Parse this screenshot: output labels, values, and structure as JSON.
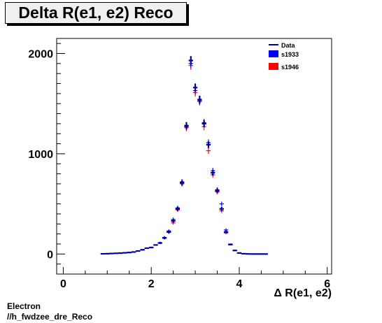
{
  "title": "Delta R(e1, e2) Reco",
  "footer": {
    "line1": "Electron",
    "line2": "//h_fwdzee_dre_Reco"
  },
  "colors": {
    "Data": "#000099",
    "s1933": "#0000ff",
    "s1946": "#ff0000"
  },
  "chart_data": {
    "type": "scatter",
    "title": "Delta R(e1, e2) Reco",
    "xlabel": "Δ R(e1, e2)",
    "ylabel": "",
    "xlim": [
      -0.15,
      6.1
    ],
    "ylim": [
      -200,
      2150
    ],
    "xticks": [
      "0",
      "2",
      "4",
      "6"
    ],
    "yticks": [
      "0",
      "1000",
      "2000"
    ],
    "legend_position": "top-right",
    "legend": [
      "Data",
      "s1933",
      "s1946"
    ],
    "bin_width": 0.1,
    "x": [
      0.9,
      1.0,
      1.1,
      1.2,
      1.3,
      1.4,
      1.5,
      1.6,
      1.7,
      1.8,
      1.9,
      2.0,
      2.1,
      2.2,
      2.3,
      2.4,
      2.5,
      2.6,
      2.7,
      2.8,
      2.9,
      3.0,
      3.1,
      3.2,
      3.3,
      3.4,
      3.5,
      3.6,
      3.7,
      3.8,
      3.9,
      4.0,
      4.1,
      4.2,
      4.3,
      4.4,
      4.5,
      4.6
    ],
    "series": [
      {
        "name": "Data",
        "values": [
          2,
          3,
          5,
          7,
          9,
          12,
          15,
          20,
          30,
          42,
          58,
          65,
          90,
          110,
          160,
          220,
          330,
          450,
          710,
          1280,
          1930,
          1660,
          1540,
          1300,
          1090,
          810,
          630,
          450,
          220,
          95,
          35,
          10,
          3,
          1,
          0,
          0,
          0,
          0
        ]
      },
      {
        "name": "s1933",
        "values": [
          2,
          3,
          5,
          7,
          9,
          12,
          16,
          21,
          32,
          45,
          60,
          68,
          92,
          112,
          165,
          230,
          345,
          460,
          720,
          1270,
          1900,
          1630,
          1530,
          1310,
          1110,
          830,
          640,
          500,
          240,
          100,
          38,
          11,
          3,
          1,
          0,
          0,
          0,
          0
        ]
      },
      {
        "name": "s1946",
        "values": [
          2,
          3,
          5,
          7,
          9,
          12,
          15,
          19,
          29,
          40,
          56,
          63,
          88,
          108,
          158,
          216,
          310,
          440,
          700,
          1260,
          1880,
          1610,
          1520,
          1270,
          1030,
          790,
          620,
          430,
          210,
          90,
          33,
          9,
          3,
          1,
          0,
          0,
          0,
          0
        ]
      }
    ]
  }
}
